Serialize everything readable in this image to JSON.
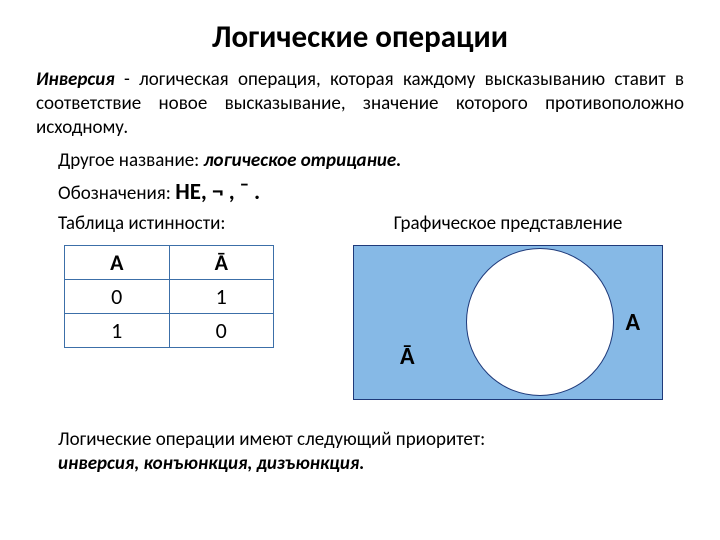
{
  "title": "Логические операции",
  "definition": {
    "term": "Инверсия",
    "rest": " - логическая операция, которая каждому высказыванию ставит в соответствие новое высказывание, значение которого противоположно исходному."
  },
  "alt_name": {
    "prefix": "Другое название: ",
    "value": "логическое отрицание."
  },
  "notation": {
    "prefix": "Обозначения: ",
    "symbols": "НЕ, ¬ , ¯ ."
  },
  "table": {
    "caption": "Таблица истинности:",
    "headers": [
      "А",
      "Ā"
    ],
    "rows": [
      [
        "0",
        "1"
      ],
      [
        "1",
        "0"
      ]
    ],
    "border_color": "#3c6fa8"
  },
  "graphic": {
    "caption": "Графическое представление",
    "bg_color": "#86b9e6",
    "circle_color": "#ffffff",
    "border_color": "#1f3a7a",
    "label_a": "A",
    "label_na": "Ā"
  },
  "priority": {
    "line1": "Логические операции имеют следующий приоритет:",
    "line2": "инверсия, конъюнкция, дизъюнкция."
  }
}
